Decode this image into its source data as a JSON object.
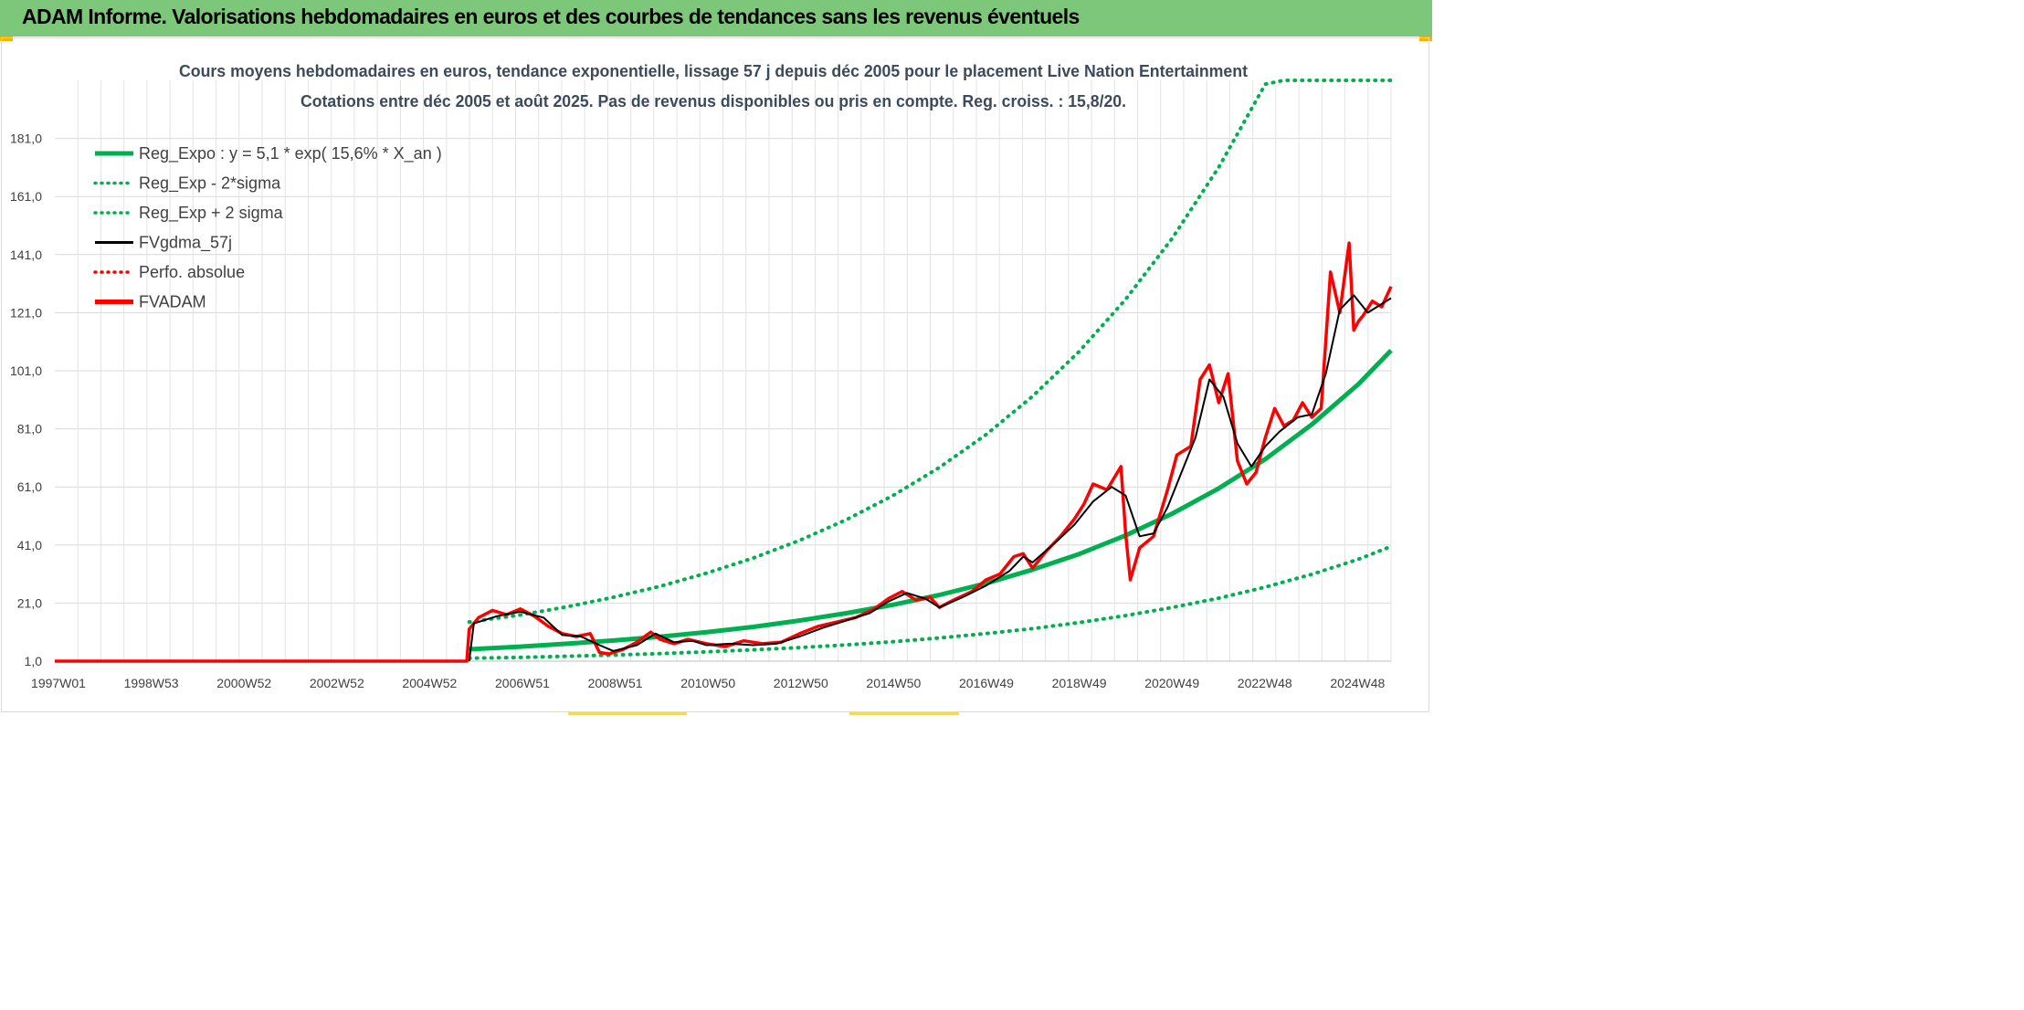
{
  "header": {
    "title": "ADAM Informe. Valorisations hebdomadaires en euros et des courbes de tendances sans les revenus éventuels"
  },
  "colors": {
    "header_bg": "#7dc77a",
    "reg_expo": "#00b050",
    "fvgdma": "#000000",
    "fvadam": "#ff0000",
    "grid": "#d9d9d9"
  },
  "chart_data": {
    "type": "line",
    "title": "Cours moyens hebdomadaires en euros, tendance exponentielle, lissage 57 j depuis déc 2005 pour le placement Live Nation Entertainment",
    "subtitle": "Cotations entre déc 2005 et août 2025. Pas de revenus disponibles ou pris en compte. Reg. croiss. : 15,8/20.",
    "xlabel": "",
    "ylabel": "",
    "x_tick_labels": [
      "1997W01",
      "1998W53",
      "2000W52",
      "2002W52",
      "2004W52",
      "2006W51",
      "2008W51",
      "2010W50",
      "2012W50",
      "2014W50",
      "2016W49",
      "2018W49",
      "2020W49",
      "2022W48",
      "2024W48"
    ],
    "x_range": [
      1997.0,
      2025.7
    ],
    "y_ticks": [
      "1,0",
      "21,0",
      "41,0",
      "61,0",
      "81,0",
      "101,0",
      "121,0",
      "141,0",
      "161,0",
      "181,0"
    ],
    "ylim": [
      1,
      201
    ],
    "grid": true,
    "legend_position": "top-left",
    "legend": [
      {
        "label": "Reg_Expo : y = 5,1 * exp( 15,6% *  X_an )",
        "style": "solid-thick",
        "color": "#00b050"
      },
      {
        "label": "Reg_Exp - 2*sigma",
        "style": "dotted",
        "color": "#00b050"
      },
      {
        "label": "Reg_Exp + 2 sigma",
        "style": "dotted",
        "color": "#00b050"
      },
      {
        "label": "FVgdma_57j",
        "style": "solid",
        "color": "#000000"
      },
      {
        "label": "Perfo. absolue",
        "style": "dotted",
        "color": "#ff0000"
      },
      {
        "label": "FVADAM",
        "style": "solid-thick",
        "color": "#ff0000"
      }
    ],
    "series": [
      {
        "name": "Reg_Expo : y = 5,1 * exp( 15,6% *  X_an )",
        "x": [
          2005.9,
          2007.0,
          2008.0,
          2009.0,
          2010.0,
          2011.0,
          2012.0,
          2013.0,
          2014.0,
          2015.0,
          2016.0,
          2017.0,
          2018.0,
          2019.0,
          2020.0,
          2021.0,
          2022.0,
          2023.0,
          2024.0,
          2025.0,
          2025.7
        ],
        "values": [
          5.1,
          6.0,
          7.0,
          8.1,
          9.4,
          11.0,
          12.8,
          15.0,
          17.5,
          20.4,
          23.8,
          27.8,
          32.5,
          37.9,
          44.3,
          51.8,
          60.5,
          70.6,
          82.5,
          96.4,
          108.0
        ]
      },
      {
        "name": "Reg_Exp - 2*sigma",
        "x": [
          2005.9,
          2007.0,
          2008.0,
          2009.0,
          2010.0,
          2011.0,
          2012.0,
          2013.0,
          2014.0,
          2015.0,
          2016.0,
          2017.0,
          2018.0,
          2019.0,
          2020.0,
          2021.0,
          2022.0,
          2023.0,
          2024.0,
          2025.0,
          2025.7
        ],
        "values": [
          2.0,
          2.3,
          2.7,
          3.1,
          3.6,
          4.2,
          4.9,
          5.7,
          6.6,
          7.7,
          9.0,
          10.5,
          12.2,
          14.3,
          16.7,
          19.5,
          22.7,
          26.5,
          30.9,
          36.1,
          40.5
        ]
      },
      {
        "name": "Reg_Exp + 2 sigma",
        "x": [
          2005.9,
          2007.0,
          2008.0,
          2009.0,
          2010.0,
          2011.0,
          2012.0,
          2013.0,
          2014.0,
          2015.0,
          2016.0,
          2017.0,
          2018.0,
          2019.0,
          2020.0,
          2021.0,
          2022.0,
          2023.0,
          2023.4,
          2024.0,
          2025.0,
          2025.7
        ],
        "values": [
          14.5,
          16.9,
          19.7,
          23.0,
          26.8,
          31.3,
          36.5,
          42.6,
          49.7,
          58.0,
          67.7,
          79.0,
          92.2,
          107.6,
          125.6,
          146.6,
          171.1,
          199.7,
          201.0,
          201.0,
          201.0,
          201.0
        ]
      },
      {
        "name": "FVgdma_57j",
        "x": [
          2005.9,
          2006.0,
          2006.5,
          2007.0,
          2007.5,
          2007.9,
          2008.3,
          2008.7,
          2009.0,
          2009.5,
          2009.9,
          2010.3,
          2010.7,
          2011.0,
          2011.5,
          2012.0,
          2012.5,
          2013.0,
          2013.5,
          2014.0,
          2014.5,
          2014.9,
          2015.3,
          2015.7,
          2016.0,
          2016.5,
          2017.0,
          2017.5,
          2017.8,
          2018.0,
          2018.5,
          2018.9,
          2019.3,
          2019.7,
          2020.0,
          2020.3,
          2020.6,
          2020.9,
          2021.2,
          2021.5,
          2021.8,
          2022.1,
          2022.4,
          2022.7,
          2023.0,
          2023.3,
          2023.7,
          2024.0,
          2024.3,
          2024.6,
          2024.9,
          2025.2,
          2025.5,
          2025.7
        ],
        "values": [
          1.0,
          14.0,
          16.5,
          18.0,
          16.0,
          10.0,
          9.5,
          6.5,
          4.5,
          6.5,
          10.5,
          7.5,
          8.0,
          6.5,
          7.0,
          6.5,
          7.0,
          9.5,
          12.5,
          15.0,
          17.5,
          21.5,
          24.5,
          22.5,
          19.5,
          23.0,
          27.0,
          32.0,
          37.0,
          35.0,
          42.0,
          48.0,
          56.0,
          61.0,
          58.0,
          44.0,
          45.0,
          54.0,
          66.0,
          78.0,
          98.0,
          92.0,
          76.0,
          68.0,
          75.0,
          80.0,
          85.0,
          86.0,
          100.0,
          122.0,
          127.0,
          121.0,
          124.0,
          126.0
        ]
      },
      {
        "name": "FVADAM",
        "x": [
          1997.0,
          2005.85,
          2005.9,
          2006.1,
          2006.4,
          2006.7,
          2007.0,
          2007.3,
          2007.6,
          2007.9,
          2008.2,
          2008.5,
          2008.7,
          2008.9,
          2009.2,
          2009.5,
          2009.8,
          2010.0,
          2010.3,
          2010.6,
          2011.0,
          2011.4,
          2011.8,
          2012.2,
          2012.6,
          2013.0,
          2013.4,
          2013.8,
          2014.2,
          2014.6,
          2014.9,
          2015.2,
          2015.5,
          2015.8,
          2016.0,
          2016.3,
          2016.7,
          2017.0,
          2017.3,
          2017.6,
          2017.8,
          2018.0,
          2018.3,
          2018.6,
          2018.9,
          2019.1,
          2019.3,
          2019.6,
          2019.9,
          2020.0,
          2020.1,
          2020.3,
          2020.6,
          2020.9,
          2021.1,
          2021.4,
          2021.6,
          2021.8,
          2022.0,
          2022.2,
          2022.4,
          2022.6,
          2022.8,
          2023.0,
          2023.2,
          2023.4,
          2023.6,
          2023.8,
          2024.0,
          2024.2,
          2024.4,
          2024.6,
          2024.8,
          2024.9,
          2025.0,
          2025.1,
          2025.3,
          2025.5,
          2025.7
        ],
        "values": [
          1.0,
          1.0,
          12.0,
          16.0,
          18.5,
          17.0,
          19.0,
          16.5,
          13.0,
          10.5,
          9.5,
          10.5,
          4.0,
          3.5,
          5.0,
          7.5,
          11.0,
          8.5,
          7.0,
          8.5,
          7.0,
          6.0,
          8.0,
          7.0,
          7.5,
          10.5,
          13.0,
          14.5,
          16.0,
          19.0,
          22.5,
          25.0,
          22.0,
          23.0,
          19.5,
          22.0,
          25.0,
          29.0,
          31.0,
          37.0,
          38.0,
          33.0,
          39.0,
          44.0,
          50.0,
          55.0,
          62.0,
          60.0,
          68.0,
          45.0,
          29.0,
          40.0,
          44.0,
          60.0,
          72.0,
          75.0,
          98.0,
          103.0,
          90.0,
          100.0,
          70.0,
          62.0,
          66.0,
          78.0,
          88.0,
          82.0,
          84.0,
          90.0,
          85.0,
          88.0,
          135.0,
          121.0,
          145.0,
          115.0,
          118.0,
          120.0,
          125.0,
          123.0,
          130.0
        ]
      }
    ]
  }
}
